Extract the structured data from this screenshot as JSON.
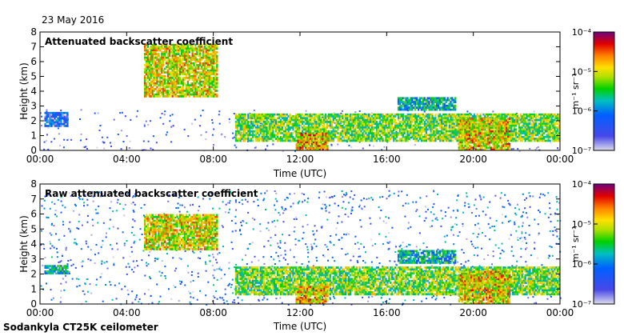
{
  "date": "23 May 2016",
  "footer": "Sodankyla CT25K ceilometer",
  "chart_data": [
    {
      "type": "heatmap",
      "title": "Attenuated backscatter coefficient",
      "xlabel": "Time (UTC)",
      "ylabel": "Height (km)",
      "xlim": [
        0,
        24
      ],
      "ylim": [
        0,
        8
      ],
      "x_ticks": [
        "00:00",
        "04:00",
        "08:00",
        "12:00",
        "16:00",
        "20:00",
        "00:00"
      ],
      "y_ticks": [
        "0",
        "1",
        "2",
        "3",
        "4",
        "5",
        "6",
        "7",
        "8"
      ],
      "colorbar": {
        "label": "m⁻¹ sr⁻¹",
        "ticks": [
          "10⁻⁷",
          "10⁻⁶",
          "10⁻⁵",
          "10⁻⁴"
        ],
        "range_log10": [
          -7,
          -4
        ]
      },
      "features": [
        {
          "name": "low cloud",
          "t": [
            0.2,
            1.3
          ],
          "h": [
            1.6,
            2.6
          ],
          "log10": -6.3
        },
        {
          "name": "mid-level cloud",
          "t": [
            4.8,
            8.2
          ],
          "h": [
            3.6,
            7.2
          ],
          "log10": -5.0
        },
        {
          "name": "boundary layer top",
          "t": [
            9.0,
            24.0
          ],
          "h": [
            0.6,
            2.5
          ],
          "log10": -5.3
        },
        {
          "name": "low cloud / rain",
          "t": [
            11.8,
            13.3
          ],
          "h": [
            0,
            1.2
          ],
          "log10": -4.8
        },
        {
          "name": "cloud",
          "t": [
            16.5,
            19.2
          ],
          "h": [
            2.7,
            3.6
          ],
          "log10": -5.8
        },
        {
          "name": "dense low cloud",
          "t": [
            19.3,
            21.7
          ],
          "h": [
            0,
            2.2
          ],
          "log10": -4.9
        }
      ]
    },
    {
      "type": "heatmap",
      "title": "Raw attenuated backscatter coefficient",
      "xlabel": "Time (UTC)",
      "ylabel": "Height (km)",
      "xlim": [
        0,
        24
      ],
      "ylim": [
        0,
        8
      ],
      "x_ticks": [
        "00:00",
        "04:00",
        "08:00",
        "12:00",
        "16:00",
        "20:00",
        "00:00"
      ],
      "y_ticks": [
        "0",
        "1",
        "2",
        "3",
        "4",
        "5",
        "6",
        "7",
        "8"
      ],
      "colorbar": {
        "label": "m⁻¹ sr⁻¹",
        "ticks": [
          "10⁻⁷",
          "10⁻⁶",
          "10⁻⁵",
          "10⁻⁴"
        ],
        "range_log10": [
          -7,
          -4
        ]
      },
      "features": [
        {
          "name": "low cloud",
          "t": [
            0.2,
            1.3
          ],
          "h": [
            2.0,
            2.6
          ],
          "log10": -5.8
        },
        {
          "name": "mid-level cloud",
          "t": [
            4.8,
            8.2
          ],
          "h": [
            3.6,
            6.0
          ],
          "log10": -5.0
        },
        {
          "name": "boundary layer top",
          "t": [
            9.0,
            24.0
          ],
          "h": [
            0.6,
            2.5
          ],
          "log10": -5.3
        },
        {
          "name": "low cloud / rain",
          "t": [
            11.8,
            13.3
          ],
          "h": [
            0,
            1.2
          ],
          "log10": -4.8
        },
        {
          "name": "cloud",
          "t": [
            16.5,
            19.2
          ],
          "h": [
            2.7,
            3.6
          ],
          "log10": -5.8
        },
        {
          "name": "dense low cloud",
          "t": [
            19.3,
            21.7
          ],
          "h": [
            0,
            2.2
          ],
          "log10": -4.9
        }
      ]
    }
  ]
}
